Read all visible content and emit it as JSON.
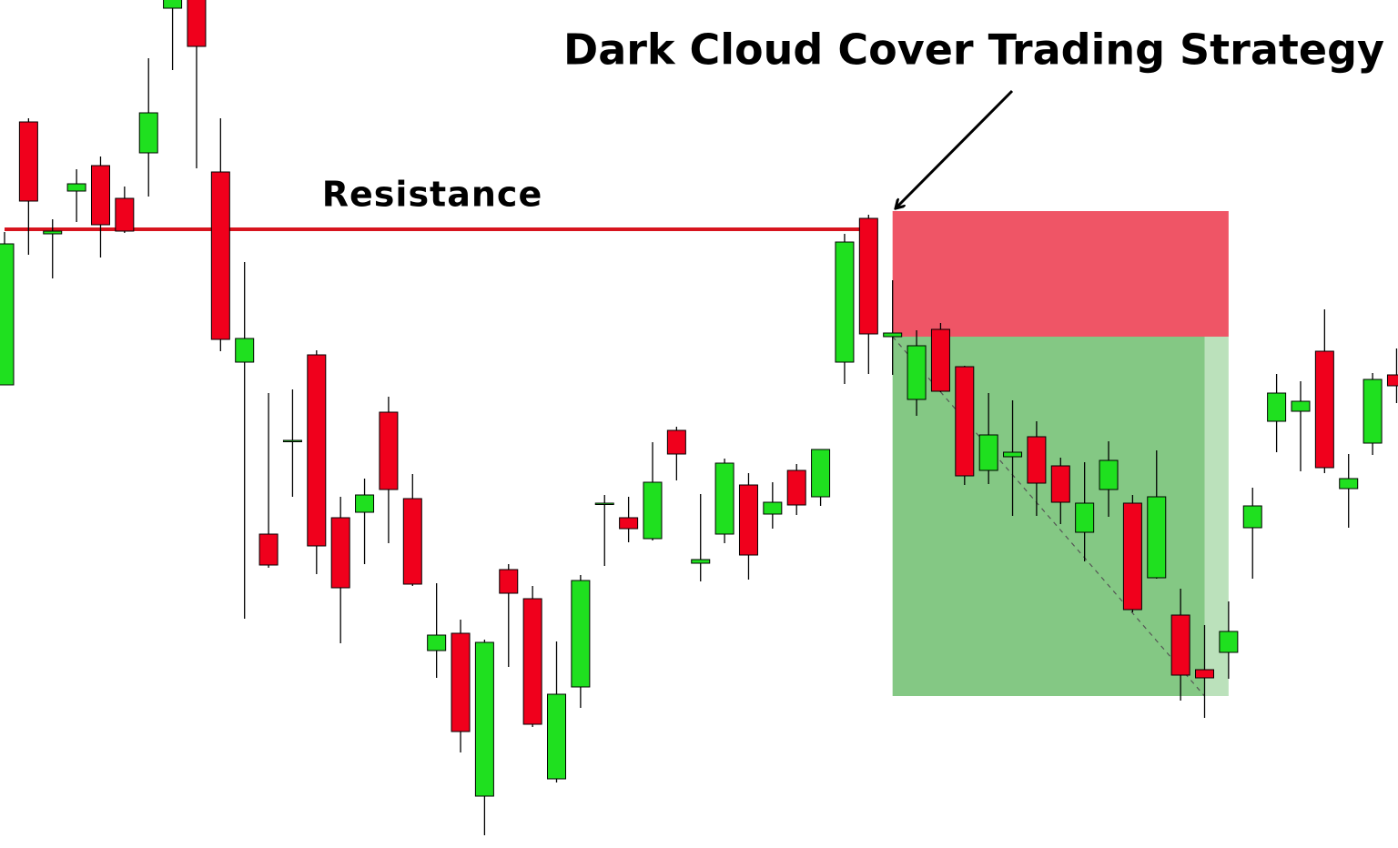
{
  "chart_data": {
    "type": "candlestick",
    "title": "Dark Cloud Cover Trading Strategy",
    "resistance_label": "Resistance",
    "ylim": [
      0,
      932
    ],
    "up_color": "#1fe01f",
    "down_color": "#f0001c",
    "open": [
      509,
      798,
      675,
      722,
      750,
      714,
      764,
      923,
      942,
      743,
      534,
      345,
      447,
      542,
      363,
      369,
      479,
      384,
      217,
      236,
      57,
      306,
      274,
      76,
      177,
      378,
      363,
      340,
      459,
      313,
      345,
      399,
      367,
      415,
      386,
      534,
      692,
      562,
      493,
      570,
      529,
      415,
      430,
      452,
      420,
      347,
      394,
      379,
      297,
      256,
      196,
      215,
      352,
      469,
      480,
      546,
      395,
      445,
      520
    ],
    "high": [
      677,
      802,
      691,
      746,
      760,
      727,
      868,
      972,
      962,
      802,
      644,
      500,
      504,
      547,
      386,
      406,
      496,
      411,
      291,
      251,
      229,
      312,
      288,
      227,
      300,
      388,
      386,
      446,
      463,
      389,
      428,
      412,
      402,
      422,
      438,
      675,
      696,
      624,
      569,
      577,
      530,
      500,
      492,
      469,
      429,
      424,
      447,
      388,
      437,
      285,
      245,
      271,
      396,
      521,
      513,
      592,
      433,
      522,
      549
    ],
    "low": [
      509,
      652,
      626,
      688,
      649,
      676,
      716,
      855,
      747,
      546,
      252,
      308,
      386,
      301,
      225,
      312,
      335,
      288,
      187,
      105,
      14,
      199,
      133,
      72,
      154,
      310,
      336,
      338,
      404,
      293,
      335,
      295,
      351,
      366,
      376,
      510,
      521,
      520,
      475,
      501,
      399,
      400,
      365,
      365,
      356,
      315,
      364,
      259,
      296,
      162,
      143,
      186,
      296,
      435,
      414,
      412,
      352,
      432,
      489
    ],
    "close": [
      664,
      711,
      678,
      730,
      685,
      678,
      808,
      952,
      881,
      559,
      560,
      311,
      448,
      332,
      286,
      388,
      394,
      290,
      234,
      128,
      226,
      280,
      136,
      169,
      294,
      379,
      351,
      402,
      433,
      317,
      423,
      322,
      380,
      377,
      438,
      666,
      565,
      566,
      552,
      502,
      409,
      454,
      435,
      401,
      380,
      379,
      426,
      262,
      386,
      190,
      187,
      238,
      376,
      500,
      491,
      418,
      406,
      515,
      508
    ],
    "resistance": 680,
    "stop_zone": [
      562,
      700
    ],
    "stop_color": "#ef5566",
    "target_zone": [
      167,
      562
    ],
    "target_color": "#84c884"
  }
}
